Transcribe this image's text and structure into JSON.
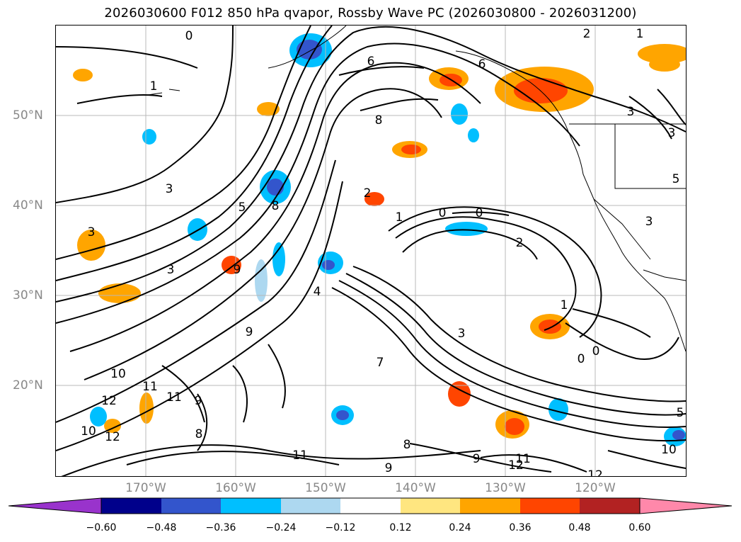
{
  "figure": {
    "title": "2026030600 F012 850 hPa qvapor, Rossby Wave PC (2026030800 - 2026031200)"
  },
  "axes": {
    "lat_labels": [
      "50°N",
      "40°N",
      "30°N",
      "20°N"
    ],
    "lon_labels": [
      "170°W",
      "160°W",
      "150°W",
      "140°W",
      "130°W",
      "120°W"
    ]
  },
  "colorbar": {
    "tick_labels": [
      "−0.60",
      "−0.48",
      "−0.36",
      "−0.24",
      "−0.12",
      "0.12",
      "0.24",
      "0.36",
      "0.48",
      "0.60"
    ],
    "colors": [
      "#9933cc",
      "#00008b",
      "#3355cc",
      "#00bfff",
      "#add8f0",
      "#ffffff",
      "#ffe680",
      "#ffa500",
      "#ff4500",
      "#b22222",
      "#ff88aa"
    ]
  },
  "contour_labels": [
    "0",
    "1",
    "1",
    "1",
    "2",
    "2",
    "3",
    "3",
    "3",
    "3",
    "3",
    "3",
    "3",
    "5",
    "5",
    "6",
    "7",
    "8",
    "8",
    "8",
    "8",
    "9",
    "9",
    "9",
    "9",
    "9",
    "10",
    "10",
    "10",
    "11",
    "11",
    "11",
    "11",
    "12",
    "12",
    "12",
    "12",
    "0",
    "0",
    "0",
    "0",
    "2",
    "4",
    "6",
    "1",
    "5"
  ]
}
